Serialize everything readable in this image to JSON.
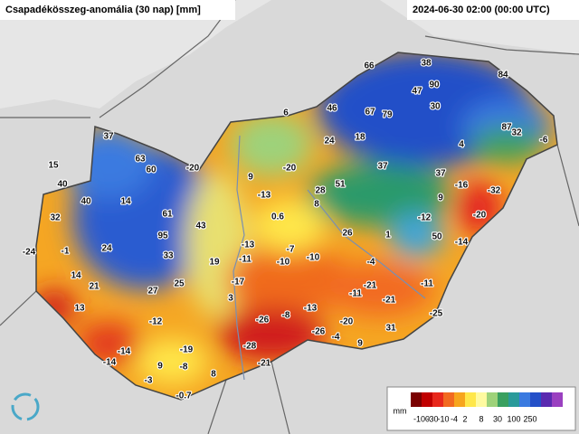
{
  "header": {
    "title": "Csapadékösszeg-anomália (30 nap) [mm]",
    "timestamp": "2024-06-30 02:00 (00:00 UTC)"
  },
  "stations": [
    66,
    38,
    84,
    90,
    47,
    30,
    46,
    67,
    79,
    6,
    87,
    32,
    -6,
    37,
    24,
    18,
    4,
    63,
    60,
    -20,
    -20,
    37,
    15,
    37,
    9,
    51,
    40,
    -16,
    -32,
    40,
    14,
    -13,
    28,
    8,
    9,
    61,
    0.6,
    -12,
    -20,
    32,
    43,
    26,
    1,
    50,
    -14,
    95,
    24,
    -13,
    -7,
    -24,
    -1,
    33,
    -11,
    -10,
    -10,
    19,
    -4,
    14,
    21,
    -17,
    27,
    25,
    -11,
    -21,
    -11,
    -21,
    3,
    13,
    -13,
    -8,
    -26,
    -12,
    -20,
    -25,
    -26,
    31,
    -4,
    9,
    -28,
    -14,
    -19,
    -14,
    -21,
    9,
    -8,
    8,
    -3,
    -0.7
  ],
  "legend": {
    "unit": "mm",
    "ticks": [
      -100,
      -30,
      -10,
      -4,
      2,
      8,
      30,
      100,
      250
    ]
  }
}
